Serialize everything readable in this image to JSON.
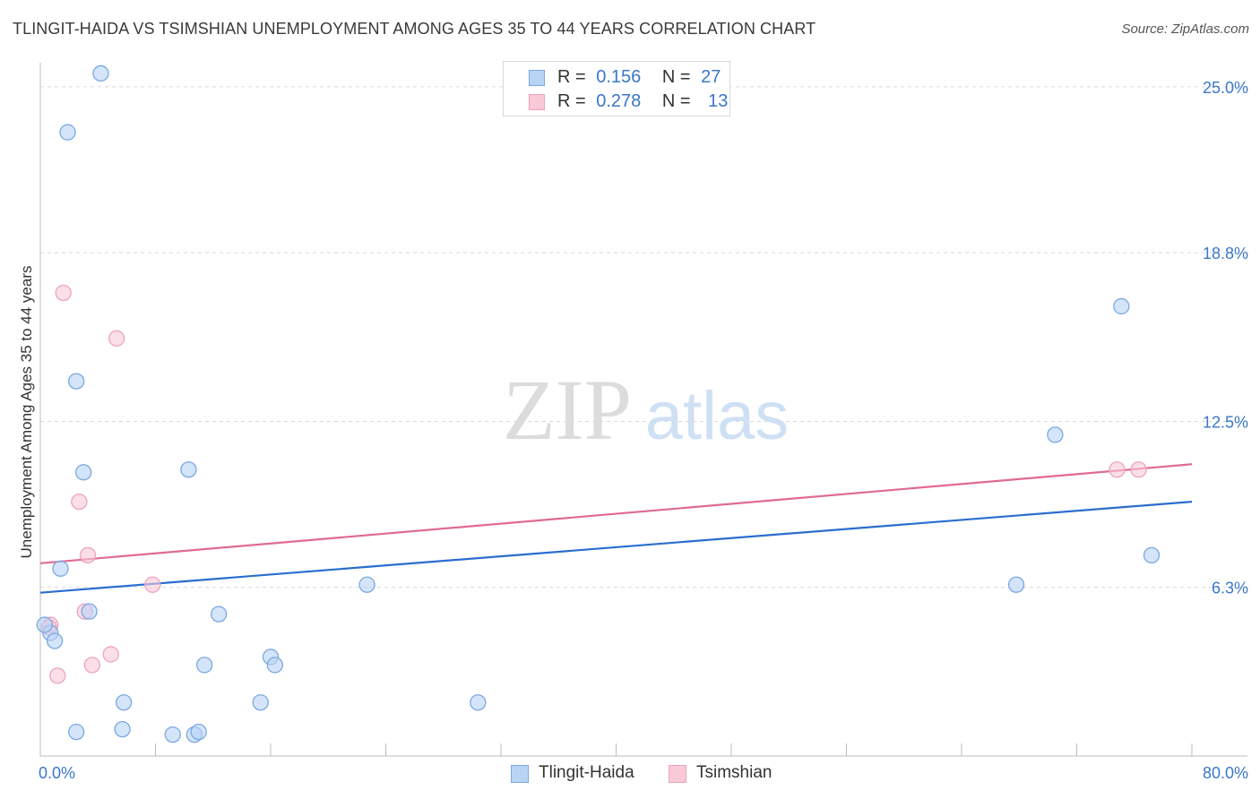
{
  "title": "TLINGIT-HAIDA VS TSIMSHIAN UNEMPLOYMENT AMONG AGES 35 TO 44 YEARS CORRELATION CHART",
  "source": "Source: ZipAtlas.com",
  "watermark": {
    "zip": "ZIP",
    "atlas": "atlas"
  },
  "colors": {
    "blue_fill": "#b9d3f5",
    "blue_stroke": "#7aa8e2",
    "blue_line": "#2a6ecf",
    "pink_fill": "#f9c9d8",
    "pink_stroke": "#eea3bb",
    "pink_line": "#e06a93",
    "axis_label": "#3a78c9",
    "grid": "#d9d9d9"
  },
  "legend": {
    "r_label": "R =",
    "n_label": "N =",
    "rows": [
      {
        "series": "Tlingit-Haida",
        "r": "0.156",
        "n": "27"
      },
      {
        "series": "Tsimshian",
        "r": "0.278",
        "n": "13"
      }
    ]
  },
  "chart_data": {
    "type": "scatter",
    "title": "TLINGIT-HAIDA VS TSIMSHIAN UNEMPLOYMENT AMONG AGES 35 TO 44 YEARS CORRELATION CHART",
    "xlabel": "",
    "ylabel": "Unemployment Among Ages 35 to 44 years",
    "xlim": [
      0,
      80
    ],
    "ylim": [
      0,
      25.9
    ],
    "x_tick_labels": {
      "min": "0.0%",
      "max": "80.0%"
    },
    "y_ticks": [
      {
        "value": 6.3,
        "label": "6.3%"
      },
      {
        "value": 12.5,
        "label": "12.5%"
      },
      {
        "value": 18.8,
        "label": "18.8%"
      },
      {
        "value": 25.0,
        "label": "25.0%"
      }
    ],
    "x_minor_ticks": [
      8,
      16,
      24,
      32,
      40,
      48,
      56,
      64,
      72,
      80
    ],
    "grid": "horizontal dashed",
    "series": [
      {
        "name": "Tlingit-Haida",
        "color": "blue",
        "points": [
          [
            4.2,
            25.5
          ],
          [
            1.9,
            23.3
          ],
          [
            2.5,
            14.0
          ],
          [
            3.0,
            10.6
          ],
          [
            10.3,
            10.7
          ],
          [
            1.4,
            7.0
          ],
          [
            3.4,
            5.4
          ],
          [
            0.7,
            4.6
          ],
          [
            1.0,
            4.3
          ],
          [
            12.4,
            5.3
          ],
          [
            22.7,
            6.4
          ],
          [
            16.0,
            3.7
          ],
          [
            16.3,
            3.4
          ],
          [
            11.4,
            3.4
          ],
          [
            5.8,
            2.0
          ],
          [
            15.3,
            2.0
          ],
          [
            30.4,
            2.0
          ],
          [
            2.5,
            0.9
          ],
          [
            5.7,
            1.0
          ],
          [
            9.2,
            0.8
          ],
          [
            10.7,
            0.8
          ],
          [
            11.0,
            0.9
          ],
          [
            0.3,
            4.9
          ],
          [
            70.5,
            12.0
          ],
          [
            67.8,
            6.4
          ],
          [
            75.1,
            16.8
          ],
          [
            77.2,
            7.5
          ]
        ],
        "trend": {
          "x0": 0,
          "y0": 6.1,
          "x1": 80,
          "y1": 9.5
        }
      },
      {
        "name": "Tsimshian",
        "color": "pink",
        "points": [
          [
            1.6,
            17.3
          ],
          [
            5.3,
            15.6
          ],
          [
            2.7,
            9.5
          ],
          [
            3.3,
            7.5
          ],
          [
            7.8,
            6.4
          ],
          [
            3.1,
            5.4
          ],
          [
            0.7,
            4.9
          ],
          [
            1.2,
            3.0
          ],
          [
            3.6,
            3.4
          ],
          [
            4.9,
            3.8
          ],
          [
            74.8,
            10.7
          ],
          [
            76.3,
            10.7
          ],
          [
            0.6,
            4.8
          ]
        ],
        "trend": {
          "x0": 0,
          "y0": 7.2,
          "x1": 80,
          "y1": 10.9
        }
      }
    ]
  }
}
